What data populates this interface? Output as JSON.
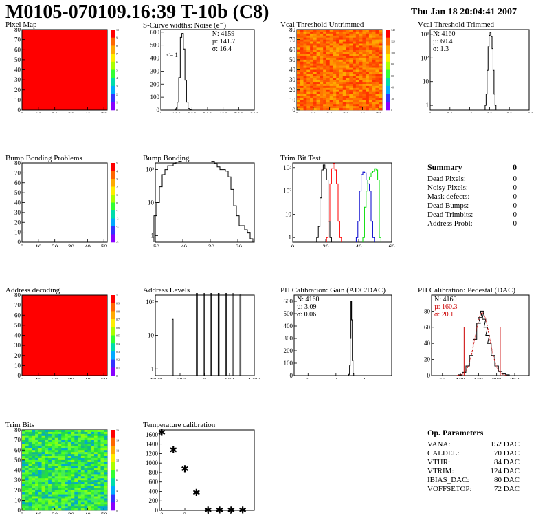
{
  "header": {
    "title": "M0105-070109.16:39 T-10b (C8)",
    "date": "Thu Jan 18 20:04:41 2007"
  },
  "colors": {
    "map_red": "#ff0000",
    "hist_line": "#000000",
    "trim_red": "#ff0000",
    "trim_blue": "#0000cc",
    "trim_green": "#00dd00",
    "pedestal_red": "#cc0000"
  },
  "chart_data": [
    {
      "id": "pixel-map",
      "type": "heatmap",
      "title": "Pixel Map",
      "xlim": [
        0,
        52
      ],
      "ylim": [
        0,
        80
      ],
      "xticks": [
        "0",
        "10",
        "20",
        "30",
        "40",
        "50"
      ],
      "yticks": [
        "0",
        "10",
        "20",
        "30",
        "40",
        "50",
        "60",
        "70",
        "80"
      ],
      "fill": "uniform-red",
      "palette_ticks": [
        "10",
        "9",
        "8",
        "7",
        "6",
        "5",
        "4",
        "3",
        "2",
        "1",
        "0"
      ]
    },
    {
      "id": "noise",
      "type": "line",
      "title": "S-Curve widths: Noise (e⁻)",
      "xlim": [
        0,
        600
      ],
      "ylim": [
        0,
        620
      ],
      "xticks": [
        "0",
        "100",
        "200",
        "300",
        "400",
        "500",
        "600"
      ],
      "yticks": [
        "0",
        "100",
        "200",
        "300",
        "400",
        "500",
        "600"
      ],
      "annotation": "<= 1",
      "stats": [
        "N: 4159",
        "µ: 141.7",
        "σ: 16.4"
      ],
      "x": [
        90,
        100,
        110,
        120,
        130,
        140,
        150,
        160,
        170,
        180,
        190,
        200
      ],
      "values": [
        0,
        10,
        60,
        250,
        560,
        590,
        470,
        230,
        60,
        12,
        3,
        0
      ]
    },
    {
      "id": "vcal-untrimmed",
      "type": "heatmap",
      "title": "Vcal Threshold Untrimmed",
      "xlim": [
        0,
        52
      ],
      "ylim": [
        0,
        80
      ],
      "xticks": [
        "0",
        "10",
        "20",
        "30",
        "40",
        "50"
      ],
      "yticks": [
        "0",
        "10",
        "20",
        "30",
        "40",
        "50",
        "60",
        "70",
        "80"
      ],
      "fill": "orange-noise",
      "palette_ticks": [
        "140",
        "120",
        "100",
        "80",
        "60",
        "40",
        "20",
        "0"
      ]
    },
    {
      "id": "vcal-trimmed",
      "type": "line",
      "title": "Vcal Threshold Trimmed",
      "log_y": true,
      "xlim": [
        0,
        100
      ],
      "xticks": [
        "0",
        "20",
        "40",
        "60",
        "80",
        "100"
      ],
      "yticks": [
        "1",
        "10",
        "10²",
        "10³"
      ],
      "stats": [
        "N: 4160",
        "µ: 60.4",
        "σ: 1.3"
      ],
      "x": [
        56,
        57,
        58,
        59,
        60,
        61,
        62,
        63,
        64,
        65,
        66
      ],
      "values": [
        1,
        3,
        30,
        300,
        900,
        1200,
        800,
        250,
        30,
        3,
        1
      ]
    },
    {
      "id": "bump-map",
      "type": "heatmap",
      "title": "Bump Bonding Problems",
      "xlim": [
        0,
        52
      ],
      "ylim": [
        0,
        80
      ],
      "xticks": [
        "0",
        "10",
        "20",
        "30",
        "40",
        "50"
      ],
      "yticks": [
        "0",
        "10",
        "20",
        "30",
        "40",
        "50",
        "60",
        "70",
        "80"
      ],
      "fill": "empty",
      "palette_ticks": [
        "5",
        "4",
        "3",
        "2",
        "1",
        "0",
        "-1",
        "-2",
        "-3",
        "-4",
        "-5"
      ]
    },
    {
      "id": "bump-bonding",
      "type": "line",
      "title": "Bump Bonding",
      "log_y": true,
      "xlim": [
        -50,
        -14
      ],
      "xticks": [
        "-50",
        "-40",
        "-30",
        "-20"
      ],
      "yticks": [
        "1",
        "10",
        "10²"
      ],
      "x": [
        -50,
        -49,
        -48,
        -47,
        -46,
        -45,
        -44,
        -43,
        -42,
        -41,
        -40,
        -39,
        -38,
        -37,
        -36,
        -35,
        -34,
        -33,
        -32,
        -31,
        -30,
        -29,
        -28,
        -27,
        -26,
        -25,
        -24,
        -23,
        -22,
        -21,
        -20,
        -19,
        -18,
        -17,
        -16,
        -15
      ],
      "values": [
        4,
        10,
        30,
        70,
        100,
        130,
        130,
        150,
        170,
        180,
        200,
        190,
        220,
        260,
        330,
        400,
        420,
        390,
        330,
        280,
        230,
        180,
        150,
        120,
        100,
        100,
        90,
        60,
        25,
        8,
        4,
        2,
        2,
        1.5,
        1.2,
        0.8
      ]
    },
    {
      "id": "trim-bit-test",
      "type": "line",
      "title": "Trim Bit Test",
      "log_y": true,
      "xlim": [
        0,
        60
      ],
      "xticks": [
        "0",
        "20",
        "40",
        "60"
      ],
      "yticks": [
        "1",
        "10",
        "10²",
        "10³"
      ],
      "series": [
        {
          "color": "#000000",
          "x": [
            15,
            16,
            17,
            18,
            19,
            20,
            21,
            22,
            23
          ],
          "values": [
            1,
            3,
            50,
            800,
            1300,
            900,
            300,
            5,
            1
          ]
        },
        {
          "color": "#ff0000",
          "x": [
            21,
            22,
            23,
            24,
            25,
            26,
            27,
            28,
            29
          ],
          "values": [
            1,
            5,
            200,
            900,
            1500,
            800,
            200,
            5,
            1
          ]
        },
        {
          "color": "#0000cc",
          "x": [
            39,
            40,
            41,
            42,
            43,
            44,
            45,
            46,
            47,
            48,
            49
          ],
          "values": [
            1,
            5,
            100,
            500,
            650,
            600,
            300,
            200,
            100,
            5,
            1
          ]
        },
        {
          "color": "#00dd00",
          "x": [
            43,
            44,
            45,
            46,
            47,
            48,
            49,
            50,
            51,
            52,
            53
          ],
          "values": [
            1,
            20,
            100,
            300,
            400,
            600,
            700,
            900,
            800,
            300,
            1
          ]
        }
      ]
    },
    {
      "id": "address-map",
      "type": "heatmap",
      "title": "Address decoding",
      "xlim": [
        0,
        52
      ],
      "ylim": [
        0,
        80
      ],
      "xticks": [
        "0",
        "10",
        "20",
        "30",
        "40",
        "50"
      ],
      "yticks": [
        "0",
        "10",
        "20",
        "30",
        "40",
        "50",
        "60",
        "70",
        "80"
      ],
      "fill": "uniform-red",
      "palette_ticks": [
        "1",
        "0.9",
        "0.8",
        "0.7",
        "0.6",
        "0.5",
        "0.4",
        "0.3",
        "0.2",
        "0.1",
        "0"
      ]
    },
    {
      "id": "address-levels",
      "type": "line",
      "title": "Address Levels",
      "log_y": true,
      "xlim": [
        -1000,
        1000
      ],
      "xticks": [
        "-1000",
        "-500",
        "0",
        "500",
        "1000"
      ],
      "yticks": [
        "1",
        "10",
        "10²"
      ],
      "peaks": [
        -650,
        -160,
        -20,
        120,
        280,
        430,
        580,
        720
      ],
      "peak_heights": [
        30,
        220,
        250,
        220,
        220,
        220,
        230,
        160
      ]
    },
    {
      "id": "ph-gain",
      "type": "line",
      "title": "PH Calibration: Gain (ADC/DAC)",
      "xlim": [
        -1,
        6
      ],
      "ylim": [
        0,
        650
      ],
      "xticks": [
        "0",
        "2",
        "4"
      ],
      "yticks": [
        "0",
        "100",
        "200",
        "300",
        "400",
        "500",
        "600"
      ],
      "stats": [
        "N: 4160",
        "µ: 3.09",
        "σ: 0.06"
      ],
      "x": [
        2.9,
        2.95,
        3.0,
        3.05,
        3.1,
        3.15,
        3.2,
        3.25,
        3.3
      ],
      "values": [
        0,
        10,
        80,
        300,
        600,
        450,
        120,
        15,
        0
      ]
    },
    {
      "id": "ph-pedestal",
      "type": "line",
      "title": "PH Calibration: Pedestal (DAC)",
      "xlim": [
        20,
        290
      ],
      "ylim": [
        0,
        100
      ],
      "xticks": [
        "50",
        "100",
        "150",
        "200",
        "250"
      ],
      "yticks": [
        "0",
        "20",
        "40",
        "60",
        "80"
      ],
      "stats": [
        "N: 4160",
        "µ: 160.3",
        "σ: 20.1"
      ],
      "fit_range": [
        110,
        210
      ],
      "x": [
        100,
        110,
        120,
        130,
        140,
        150,
        155,
        160,
        165,
        170,
        175,
        180,
        190,
        200,
        210,
        220,
        230
      ],
      "values": [
        1,
        4,
        12,
        25,
        45,
        65,
        72,
        80,
        70,
        60,
        50,
        40,
        25,
        12,
        5,
        2,
        1
      ]
    },
    {
      "id": "trim-bits-map",
      "type": "heatmap",
      "title": "Trim Bits",
      "xlim": [
        0,
        52
      ],
      "ylim": [
        0,
        80
      ],
      "xticks": [
        "0",
        "10",
        "20",
        "30",
        "40",
        "50"
      ],
      "yticks": [
        "0",
        "10",
        "20",
        "30",
        "40",
        "50",
        "60",
        "70",
        "80"
      ],
      "fill": "green-noise",
      "palette_ticks": [
        "16",
        "14",
        "12",
        "10",
        "8",
        "6",
        "4",
        "2",
        "0"
      ]
    },
    {
      "id": "temperature",
      "type": "scatter",
      "title": "Temperature calibration",
      "xlim": [
        -0.2,
        8
      ],
      "ylim": [
        0,
        1700
      ],
      "xticks": [
        "0",
        "2",
        "4",
        "6"
      ],
      "yticks": [
        "0",
        "200",
        "400",
        "600",
        "800",
        "1000",
        "1200",
        "1400",
        "1600"
      ],
      "x": [
        0,
        1,
        2,
        3,
        4,
        5,
        6,
        7
      ],
      "values": [
        1650,
        1280,
        880,
        380,
        10,
        10,
        10,
        10
      ]
    }
  ],
  "summary": {
    "title": "Summary",
    "total": "0",
    "rows": [
      {
        "label": "Dead Pixels:",
        "value": "0"
      },
      {
        "label": "Noisy Pixels:",
        "value": "0"
      },
      {
        "label": "Mask defects:",
        "value": "0"
      },
      {
        "label": "Dead Bumps:",
        "value": "0"
      },
      {
        "label": "Dead Trimbits:",
        "value": "0"
      },
      {
        "label": "Address Probl:",
        "value": "0"
      }
    ]
  },
  "op_params": {
    "title": "Op. Parameters",
    "rows": [
      {
        "label": "VANA:",
        "value": "152 DAC"
      },
      {
        "label": "CALDEL:",
        "value": "70 DAC"
      },
      {
        "label": "VTHR:",
        "value": "84 DAC"
      },
      {
        "label": "VTRIM:",
        "value": "124 DAC"
      },
      {
        "label": "IBIAS_DAC:",
        "value": "80 DAC"
      },
      {
        "label": "VOFFSETOP:",
        "value": "72 DAC"
      }
    ]
  }
}
